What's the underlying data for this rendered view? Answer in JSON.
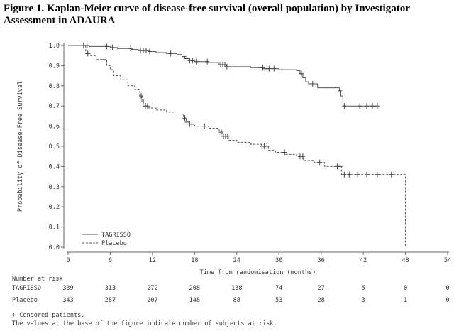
{
  "title": "Figure 1. Kaplan-Meier curve of disease-free survival (overall population) by Investigator Assessment in ADAURA",
  "chart_data": {
    "type": "line",
    "xlabel": "Time from randomisation (months)",
    "ylabel": "Probability of Disease-Free Survival",
    "xlim": [
      0,
      54
    ],
    "ylim": [
      0.0,
      1.0
    ],
    "x_ticks": [
      0,
      6,
      12,
      18,
      24,
      30,
      36,
      42,
      48,
      54
    ],
    "y_ticks": [
      0.0,
      0.1,
      0.2,
      0.3,
      0.4,
      0.5,
      0.6,
      0.7,
      0.8,
      0.9,
      1.0
    ],
    "y_tick_labels": [
      "0.0",
      "0.1",
      "0.2",
      "0.3",
      "0.4",
      "0.5",
      "0.6",
      "0.7",
      "0.8",
      "0.9",
      "1.0"
    ],
    "legend_position": "bottom-left",
    "series": [
      {
        "name": "TAGRISSO",
        "style": "solid",
        "color": "#555555",
        "steps": [
          [
            0,
            1.0
          ],
          [
            3,
            0.995
          ],
          [
            6,
            0.99
          ],
          [
            7,
            0.985
          ],
          [
            9,
            0.98
          ],
          [
            10,
            0.975
          ],
          [
            11.5,
            0.97
          ],
          [
            12.5,
            0.965
          ],
          [
            14,
            0.96
          ],
          [
            15.5,
            0.955
          ],
          [
            16.2,
            0.945
          ],
          [
            16.6,
            0.935
          ],
          [
            17.2,
            0.925
          ],
          [
            18,
            0.92
          ],
          [
            20,
            0.915
          ],
          [
            21.5,
            0.905
          ],
          [
            22.5,
            0.895
          ],
          [
            26,
            0.89
          ],
          [
            28,
            0.885
          ],
          [
            30,
            0.88
          ],
          [
            32.5,
            0.875
          ],
          [
            33,
            0.86
          ],
          [
            33.4,
            0.84
          ],
          [
            33.8,
            0.82
          ],
          [
            34.2,
            0.81
          ],
          [
            35.5,
            0.79
          ],
          [
            38.6,
            0.775
          ],
          [
            38.8,
            0.75
          ],
          [
            39.1,
            0.7
          ],
          [
            44,
            0.7
          ]
        ],
        "censored": [
          2.7,
          5.5,
          6.3,
          8.9,
          10.3,
          10.7,
          11.1,
          11.6,
          14.6,
          16.5,
          16.9,
          17.3,
          17.7,
          18.3,
          19.8,
          21.7,
          22.0,
          22.3,
          22.6,
          27.3,
          27.7,
          28.0,
          28.3,
          28.6,
          29.3,
          33.2,
          34.8,
          38.7,
          39.3,
          41.5,
          42.5,
          43.3,
          44.0
        ],
        "at_risk": [
          339,
          313,
          272,
          208,
          138,
          74,
          27,
          5,
          0,
          0
        ]
      },
      {
        "name": "Placebo",
        "style": "dashed",
        "color": "#555555",
        "steps": [
          [
            0,
            1.0
          ],
          [
            2.5,
            0.96
          ],
          [
            3.2,
            0.95
          ],
          [
            4,
            0.93
          ],
          [
            5.5,
            0.9
          ],
          [
            6,
            0.88
          ],
          [
            6.5,
            0.85
          ],
          [
            7.5,
            0.83
          ],
          [
            8.5,
            0.8
          ],
          [
            9.5,
            0.78
          ],
          [
            10.2,
            0.75
          ],
          [
            10.5,
            0.72
          ],
          [
            11,
            0.7
          ],
          [
            11.5,
            0.69
          ],
          [
            12.5,
            0.68
          ],
          [
            14,
            0.67
          ],
          [
            15,
            0.66
          ],
          [
            16.4,
            0.64
          ],
          [
            16.8,
            0.62
          ],
          [
            17.2,
            0.61
          ],
          [
            18,
            0.6
          ],
          [
            20,
            0.59
          ],
          [
            21.5,
            0.57
          ],
          [
            22,
            0.55
          ],
          [
            22.8,
            0.53
          ],
          [
            24,
            0.52
          ],
          [
            26,
            0.51
          ],
          [
            27.5,
            0.5
          ],
          [
            28.5,
            0.48
          ],
          [
            29.5,
            0.47
          ],
          [
            31,
            0.46
          ],
          [
            32.5,
            0.45
          ],
          [
            33.5,
            0.43
          ],
          [
            35,
            0.42
          ],
          [
            36.5,
            0.4
          ],
          [
            38.9,
            0.36
          ],
          [
            48,
            0.36
          ],
          [
            48,
            0.0
          ]
        ],
        "censored": [
          2.2,
          2.8,
          5.1,
          10.4,
          10.7,
          11.0,
          11.3,
          16.6,
          16.9,
          17.3,
          17.6,
          19.4,
          21.8,
          22.1,
          22.4,
          22.7,
          27.6,
          27.9,
          28.3,
          30.8,
          33.0,
          33.4,
          35.8,
          38.3,
          38.7,
          39.3,
          40.0,
          41.2,
          42.5,
          44.0,
          46.0
        ],
        "at_risk": [
          343,
          287,
          207,
          148,
          88,
          53,
          28,
          3,
          1,
          0
        ]
      }
    ]
  },
  "risk_table": {
    "header": "Number at risk",
    "rows": [
      {
        "label": "TAGRISSO",
        "values": [
          "339",
          "313",
          "272",
          "208",
          "138",
          "74",
          "27",
          "5",
          "0",
          "0"
        ]
      },
      {
        "label": "Placebo",
        "values": [
          "343",
          "287",
          "207",
          "148",
          "88",
          "53",
          "28",
          "3",
          "1",
          "0"
        ]
      }
    ]
  },
  "footnotes": [
    "+ Censored patients.",
    "The values at the base of the figure indicate number of subjects at risk."
  ]
}
